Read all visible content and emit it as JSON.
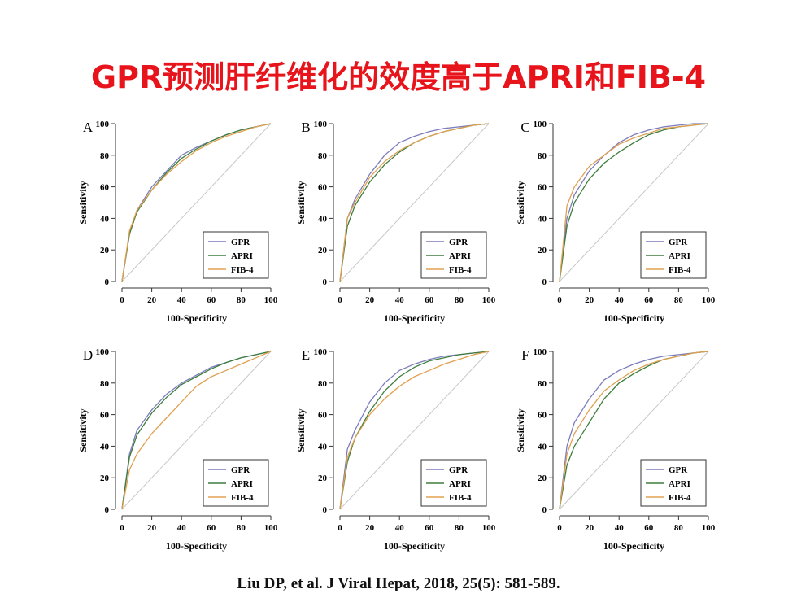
{
  "title": "GPR预测肝纤维化的效度高于APRI和FIB-4",
  "citation": "Liu DP, et al. J Viral Hepat, 2018, 25(5): 581-589.",
  "chart_data": [
    {
      "type": "line",
      "panel": "A",
      "x_label": "100-Specificity",
      "y_label": "Sensitivity",
      "xlim": [
        0,
        100
      ],
      "ylim": [
        0,
        100
      ],
      "xticks": [
        0,
        20,
        40,
        60,
        80,
        100
      ],
      "yticks": [
        0,
        20,
        40,
        60,
        80,
        100
      ],
      "legend": "lower right",
      "x": [
        0,
        5,
        10,
        20,
        30,
        40,
        50,
        60,
        70,
        80,
        90,
        100
      ],
      "series": [
        {
          "name": "GPR",
          "color": "#7c7cbc",
          "values": [
            0,
            30,
            45,
            60,
            70,
            80,
            85,
            89,
            93,
            96,
            98,
            100
          ]
        },
        {
          "name": "APRI",
          "color": "#3d7d3d",
          "values": [
            0,
            30,
            44,
            58,
            69,
            78,
            84,
            89,
            93,
            96,
            98,
            100
          ]
        },
        {
          "name": "FIB-4",
          "color": "#e0a050",
          "values": [
            0,
            32,
            45,
            58,
            68,
            76,
            83,
            88,
            92,
            95,
            98,
            100
          ]
        }
      ]
    },
    {
      "type": "line",
      "panel": "B",
      "x_label": "100-Specificity",
      "y_label": "Sensitivity",
      "xlim": [
        0,
        100
      ],
      "ylim": [
        0,
        100
      ],
      "xticks": [
        0,
        20,
        40,
        60,
        80,
        100
      ],
      "yticks": [
        0,
        20,
        40,
        60,
        80,
        100
      ],
      "legend": "lower right",
      "x": [
        0,
        5,
        10,
        20,
        30,
        40,
        50,
        60,
        70,
        80,
        90,
        100
      ],
      "series": [
        {
          "name": "GPR",
          "color": "#7c7cbc",
          "values": [
            0,
            40,
            52,
            68,
            80,
            88,
            92,
            95,
            97,
            98,
            99,
            100
          ]
        },
        {
          "name": "APRI",
          "color": "#3d7d3d",
          "values": [
            0,
            35,
            48,
            63,
            74,
            82,
            88,
            92,
            95,
            97,
            99,
            100
          ]
        },
        {
          "name": "FIB-4",
          "color": "#e0a050",
          "values": [
            0,
            40,
            50,
            66,
            76,
            83,
            88,
            92,
            95,
            97,
            99,
            100
          ]
        }
      ]
    },
    {
      "type": "line",
      "panel": "C",
      "x_label": "100-Specificity",
      "y_label": "Sensitivity",
      "xlim": [
        0,
        100
      ],
      "ylim": [
        0,
        100
      ],
      "xticks": [
        0,
        20,
        40,
        60,
        80,
        100
      ],
      "yticks": [
        0,
        20,
        40,
        60,
        80,
        100
      ],
      "legend": "lower right",
      "x": [
        0,
        5,
        10,
        20,
        30,
        40,
        50,
        60,
        70,
        80,
        90,
        100
      ],
      "series": [
        {
          "name": "GPR",
          "color": "#7c7cbc",
          "values": [
            0,
            40,
            55,
            70,
            80,
            88,
            93,
            96,
            98,
            99,
            100,
            100
          ]
        },
        {
          "name": "APRI",
          "color": "#3d7d3d",
          "values": [
            0,
            35,
            50,
            65,
            75,
            82,
            88,
            93,
            96,
            98,
            99,
            100
          ]
        },
        {
          "name": "FIB-4",
          "color": "#e0a050",
          "values": [
            0,
            48,
            60,
            73,
            80,
            87,
            91,
            94,
            97,
            98,
            99,
            100
          ]
        }
      ]
    },
    {
      "type": "line",
      "panel": "D",
      "x_label": "100-Specificity",
      "y_label": "Sensitivity",
      "xlim": [
        0,
        100
      ],
      "ylim": [
        0,
        100
      ],
      "xticks": [
        0,
        20,
        40,
        60,
        80,
        100
      ],
      "yticks": [
        0,
        20,
        40,
        60,
        80,
        100
      ],
      "legend": "lower right",
      "x": [
        0,
        5,
        10,
        20,
        30,
        40,
        50,
        60,
        70,
        80,
        90,
        100
      ],
      "series": [
        {
          "name": "GPR",
          "color": "#7c7cbc",
          "values": [
            0,
            35,
            50,
            63,
            73,
            80,
            85,
            90,
            93,
            96,
            98,
            100
          ]
        },
        {
          "name": "APRI",
          "color": "#3d7d3d",
          "values": [
            0,
            33,
            47,
            61,
            71,
            79,
            84,
            89,
            93,
            96,
            98,
            100
          ]
        },
        {
          "name": "FIB-4",
          "color": "#e0a050",
          "values": [
            0,
            25,
            35,
            48,
            58,
            68,
            78,
            84,
            88,
            92,
            96,
            100
          ]
        }
      ]
    },
    {
      "type": "line",
      "panel": "E",
      "x_label": "100-Specificity",
      "y_label": "Sensitivity",
      "xlim": [
        0,
        100
      ],
      "ylim": [
        0,
        100
      ],
      "xticks": [
        0,
        20,
        40,
        60,
        80,
        100
      ],
      "yticks": [
        0,
        20,
        40,
        60,
        80,
        100
      ],
      "legend": "lower right",
      "x": [
        0,
        5,
        10,
        20,
        30,
        40,
        50,
        60,
        70,
        80,
        90,
        100
      ],
      "series": [
        {
          "name": "GPR",
          "color": "#7c7cbc",
          "values": [
            0,
            38,
            50,
            68,
            80,
            88,
            92,
            95,
            97,
            98,
            99,
            100
          ]
        },
        {
          "name": "APRI",
          "color": "#3d7d3d",
          "values": [
            0,
            30,
            45,
            62,
            75,
            84,
            90,
            94,
            96,
            98,
            99,
            100
          ]
        },
        {
          "name": "FIB-4",
          "color": "#e0a050",
          "values": [
            0,
            33,
            45,
            60,
            70,
            78,
            84,
            88,
            92,
            95,
            98,
            100
          ]
        }
      ]
    },
    {
      "type": "line",
      "panel": "F",
      "x_label": "100-Specificity",
      "y_label": "Sensitivity",
      "xlim": [
        0,
        100
      ],
      "ylim": [
        0,
        100
      ],
      "xticks": [
        0,
        20,
        40,
        60,
        80,
        100
      ],
      "yticks": [
        0,
        20,
        40,
        60,
        80,
        100
      ],
      "legend": "lower right",
      "x": [
        0,
        5,
        10,
        20,
        30,
        40,
        50,
        60,
        70,
        80,
        90,
        100
      ],
      "series": [
        {
          "name": "GPR",
          "color": "#7c7cbc",
          "values": [
            0,
            40,
            55,
            70,
            82,
            88,
            92,
            95,
            97,
            98,
            99,
            100
          ]
        },
        {
          "name": "APRI",
          "color": "#3d7d3d",
          "values": [
            0,
            28,
            40,
            55,
            70,
            80,
            86,
            91,
            95,
            97,
            99,
            100
          ]
        },
        {
          "name": "FIB-4",
          "color": "#e0a050",
          "values": [
            0,
            35,
            48,
            63,
            75,
            82,
            88,
            92,
            95,
            97,
            99,
            100
          ]
        }
      ]
    }
  ]
}
